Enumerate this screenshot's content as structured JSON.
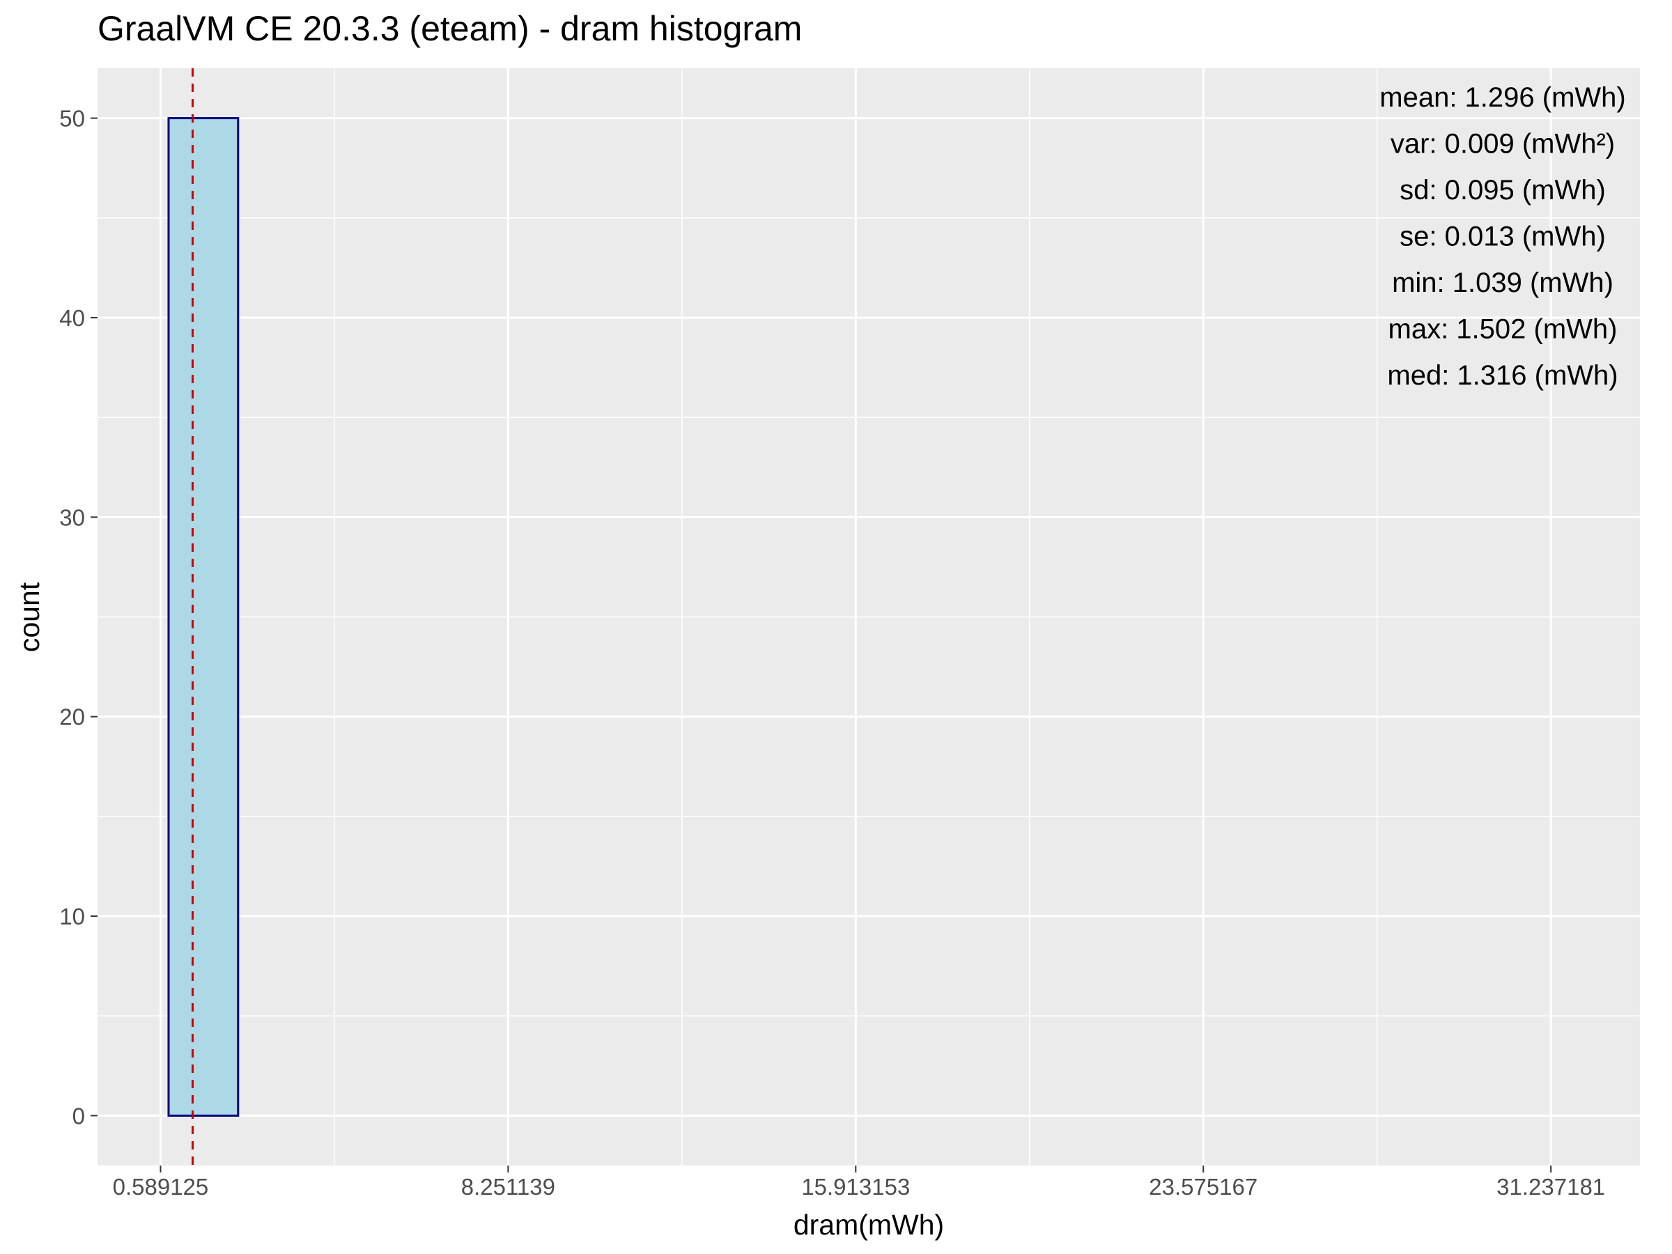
{
  "chart_data": {
    "type": "bar",
    "title": "GraalVM CE 20.3.3 (eteam) - dram histogram",
    "xlabel": "dram(mWh)",
    "ylabel": "count",
    "xlim": [
      -0.8,
      33.2
    ],
    "ylim": [
      -2.5,
      52.5
    ],
    "x_ticks": [
      0.589125,
      8.251139,
      15.913153,
      23.575167,
      31.237181
    ],
    "x_tick_labels": [
      "0.589125",
      "8.251139",
      "15.913153",
      "23.575167",
      "31.237181"
    ],
    "y_ticks": [
      0,
      10,
      20,
      30,
      40,
      50
    ],
    "y_tick_labels": [
      "0",
      "10",
      "20",
      "30",
      "40",
      "50"
    ],
    "bin_width": 1.532403,
    "bins": [
      {
        "x": 0.0,
        "count": 0
      },
      {
        "x": 1.532403,
        "count": 50
      },
      {
        "x": 3.064806,
        "count": 0
      },
      {
        "x": 4.597209,
        "count": 0
      },
      {
        "x": 6.129612,
        "count": 0
      },
      {
        "x": 7.662015,
        "count": 0
      },
      {
        "x": 9.194418,
        "count": 0
      },
      {
        "x": 10.726821,
        "count": 0
      },
      {
        "x": 12.259224,
        "count": 0
      },
      {
        "x": 13.791627,
        "count": 0
      },
      {
        "x": 15.32403,
        "count": 0
      },
      {
        "x": 16.856433,
        "count": 0
      },
      {
        "x": 18.388836,
        "count": 0
      },
      {
        "x": 19.921239,
        "count": 0
      },
      {
        "x": 21.453642,
        "count": 0
      },
      {
        "x": 22.986045,
        "count": 0
      },
      {
        "x": 24.518448,
        "count": 0
      },
      {
        "x": 26.050851,
        "count": 0
      },
      {
        "x": 27.583254,
        "count": 0
      },
      {
        "x": 29.115657,
        "count": 0
      },
      {
        "x": 30.64806,
        "count": 0
      },
      {
        "x": 32.180463,
        "count": 0
      }
    ],
    "mean_line": 1.296,
    "grid": true,
    "stats": [
      "mean: 1.296 (mWh)",
      "var: 0.009 (mWh²)",
      "sd: 0.095 (mWh)",
      "se: 0.013 (mWh)",
      "min: 1.039 (mWh)",
      "max: 1.502 (mWh)",
      "med: 1.316 (mWh)"
    ],
    "stats_placement": "top-right",
    "colors": {
      "panel": "#ebebeb",
      "grid": "#ffffff",
      "bar_fill": "#add8e6",
      "bar_outline": "#000080",
      "mean_line": "#cc0000"
    }
  }
}
